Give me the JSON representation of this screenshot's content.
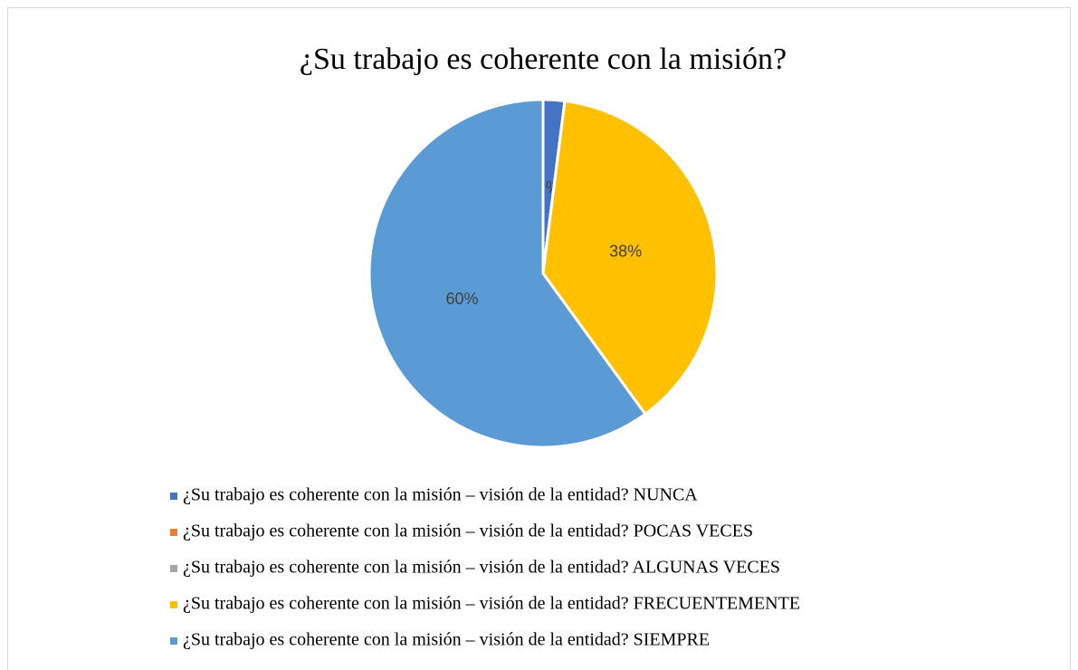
{
  "chart_data": {
    "type": "pie",
    "title": "¿Su trabajo es coherente con la misión?",
    "categories": [
      "¿Su trabajo es coherente con la misión – visión de la entidad? NUNCA",
      "¿Su trabajo es coherente con la misión – visión de la entidad? POCAS VECES",
      "¿Su trabajo es coherente con la misión – visión de la entidad? ALGUNAS VECES",
      "¿Su trabajo es coherente con la misión – visión de la entidad? FRECUENTEMENTE",
      "¿Su trabajo es coherente con la misión – visión de la entidad? SIEMPRE"
    ],
    "values": [
      2,
      0,
      0,
      38,
      60
    ],
    "value_labels": [
      "2%",
      null,
      null,
      "38%",
      "60%"
    ],
    "colors": [
      "#4472c4",
      "#ed7d31",
      "#a5a5a5",
      "#ffc000",
      "#5b9bd5"
    ],
    "legend": "bottom"
  }
}
